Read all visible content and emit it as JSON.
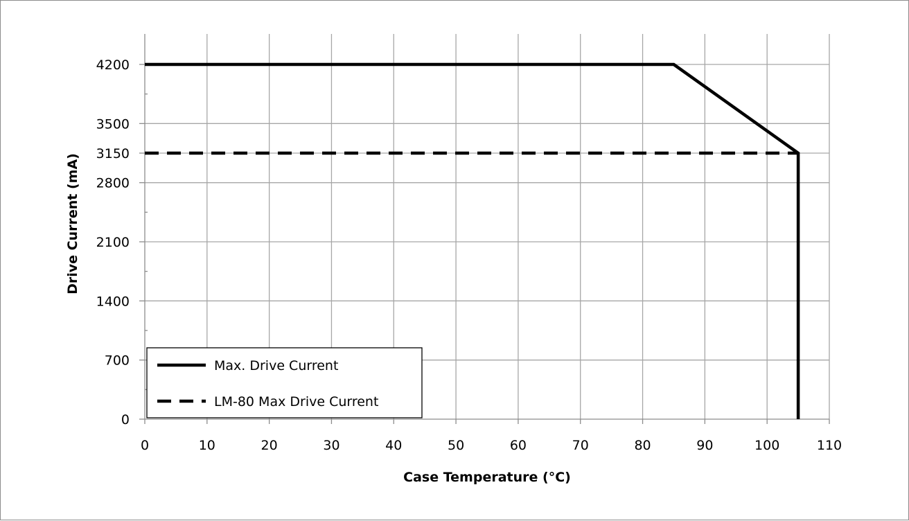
{
  "chart_data": {
    "type": "line",
    "title": "",
    "xlabel": "Case Temperature (°C)",
    "ylabel": "Drive Current (mA)",
    "xlim": [
      0,
      110
    ],
    "ylim": [
      0,
      4200
    ],
    "x_ticks": [
      0,
      10,
      20,
      30,
      40,
      50,
      60,
      70,
      80,
      90,
      100,
      110
    ],
    "y_ticks": [
      0,
      700,
      1400,
      2100,
      2800,
      3150,
      3500,
      4200
    ],
    "x_tick_labels": [
      "0",
      "10",
      "20",
      "30",
      "40",
      "50",
      "60",
      "70",
      "80",
      "90",
      "100",
      "110"
    ],
    "y_tick_labels": [
      "0",
      "700",
      "1400",
      "2100",
      "2800",
      "3150",
      "3500",
      "4200"
    ],
    "grid": true,
    "legend_position": "bottom-left",
    "series": [
      {
        "name": "Max. Drive Current",
        "style": "solid",
        "color": "#000000",
        "x": [
          0,
          85,
          105,
          105
        ],
        "y": [
          4200,
          4200,
          3150,
          0
        ]
      },
      {
        "name": "LM-80 Max Drive Current",
        "style": "dashed",
        "color": "#000000",
        "x": [
          0,
          105
        ],
        "y": [
          3150,
          3150
        ]
      }
    ]
  }
}
